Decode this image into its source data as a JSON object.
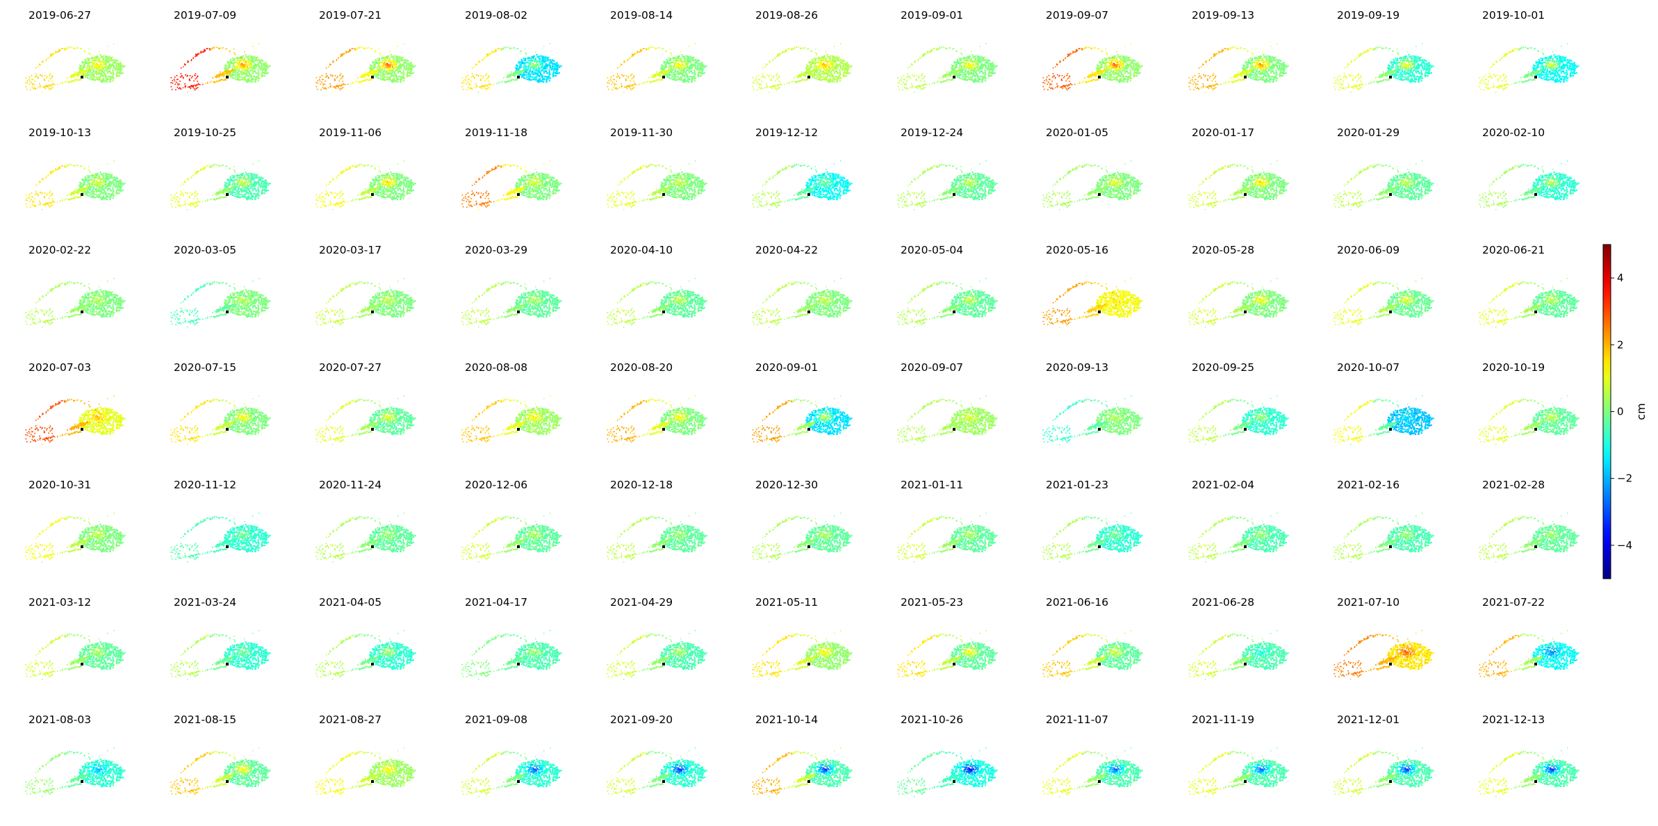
{
  "chart_data": {
    "type": "scatter",
    "layout": "small-multiples",
    "rows": 7,
    "cols": 11,
    "panels": [
      {
        "date": "2019-06-27",
        "east_anomaly": 1.5,
        "west_value": 1.6,
        "center_value": 0.3
      },
      {
        "date": "2019-07-09",
        "east_anomaly": 2.5,
        "west_value": 3.5,
        "center_value": 0.2
      },
      {
        "date": "2019-07-21",
        "east_anomaly": 3.0,
        "west_value": 2.2,
        "center_value": 0.2
      },
      {
        "date": "2019-08-02",
        "east_anomaly": 0.5,
        "west_value": 1.5,
        "center_value": -1.5
      },
      {
        "date": "2019-08-14",
        "east_anomaly": 1.5,
        "west_value": 1.8,
        "center_value": 0.0
      },
      {
        "date": "2019-08-26",
        "east_anomaly": 2.0,
        "west_value": 0.8,
        "center_value": 0.5
      },
      {
        "date": "2019-09-01",
        "east_anomaly": 1.5,
        "west_value": 0.6,
        "center_value": 0.0
      },
      {
        "date": "2019-09-07",
        "east_anomaly": 3.0,
        "west_value": 2.8,
        "center_value": 0.2
      },
      {
        "date": "2019-09-13",
        "east_anomaly": 2.5,
        "west_value": 2.0,
        "center_value": 0.0
      },
      {
        "date": "2019-09-19",
        "east_anomaly": 1.5,
        "west_value": 1.0,
        "center_value": -0.8
      },
      {
        "date": "2019-10-01",
        "east_anomaly": 1.2,
        "west_value": 1.0,
        "center_value": -1.2
      },
      {
        "date": "2019-10-13",
        "east_anomaly": 1.0,
        "west_value": 1.5,
        "center_value": 0.0
      },
      {
        "date": "2019-10-25",
        "east_anomaly": 1.0,
        "west_value": 1.0,
        "center_value": -0.5
      },
      {
        "date": "2019-11-06",
        "east_anomaly": 1.8,
        "west_value": 1.2,
        "center_value": 0.0
      },
      {
        "date": "2019-11-18",
        "east_anomaly": 1.0,
        "west_value": 2.5,
        "center_value": 0.0
      },
      {
        "date": "2019-11-30",
        "east_anomaly": 0.8,
        "west_value": 1.0,
        "center_value": 0.0
      },
      {
        "date": "2019-12-12",
        "east_anomaly": 0.0,
        "west_value": 0.5,
        "center_value": -1.2
      },
      {
        "date": "2019-12-24",
        "east_anomaly": 0.8,
        "west_value": 0.5,
        "center_value": -0.3
      },
      {
        "date": "2020-01-05",
        "east_anomaly": 1.2,
        "west_value": 0.4,
        "center_value": 0.0
      },
      {
        "date": "2020-01-17",
        "east_anomaly": 1.8,
        "west_value": 0.8,
        "center_value": 0.0
      },
      {
        "date": "2020-01-29",
        "east_anomaly": 0.8,
        "west_value": 0.6,
        "center_value": -0.3
      },
      {
        "date": "2020-02-10",
        "east_anomaly": 0.8,
        "west_value": 0.4,
        "center_value": -0.8
      },
      {
        "date": "2020-02-22",
        "east_anomaly": 0.6,
        "west_value": 0.5,
        "center_value": 0.0
      },
      {
        "date": "2020-03-05",
        "east_anomaly": 0.6,
        "west_value": -0.6,
        "center_value": 0.0
      },
      {
        "date": "2020-03-17",
        "east_anomaly": 0.8,
        "west_value": 0.7,
        "center_value": 0.0
      },
      {
        "date": "2020-03-29",
        "east_anomaly": 0.6,
        "west_value": 0.6,
        "center_value": -0.3
      },
      {
        "date": "2020-04-10",
        "east_anomaly": 0.8,
        "west_value": 0.6,
        "center_value": -0.3
      },
      {
        "date": "2020-04-22",
        "east_anomaly": 0.8,
        "west_value": 0.6,
        "center_value": 0.0
      },
      {
        "date": "2020-05-04",
        "east_anomaly": 0.8,
        "west_value": 0.5,
        "center_value": -0.3
      },
      {
        "date": "2020-05-16",
        "east_anomaly": 1.5,
        "west_value": 2.2,
        "center_value": 1.2
      },
      {
        "date": "2020-05-28",
        "east_anomaly": 1.5,
        "west_value": 0.8,
        "center_value": 0.0
      },
      {
        "date": "2020-06-09",
        "east_anomaly": 1.2,
        "west_value": 1.0,
        "center_value": -0.2
      },
      {
        "date": "2020-06-21",
        "east_anomaly": 0.8,
        "west_value": 1.0,
        "center_value": -0.3
      },
      {
        "date": "2020-07-03",
        "east_anomaly": 2.0,
        "west_value": 3.0,
        "center_value": 1.0
      },
      {
        "date": "2020-07-15",
        "east_anomaly": 1.5,
        "west_value": 1.5,
        "center_value": 0.0
      },
      {
        "date": "2020-07-27",
        "east_anomaly": 1.2,
        "west_value": 1.0,
        "center_value": -0.3
      },
      {
        "date": "2020-08-08",
        "east_anomaly": 1.5,
        "west_value": 1.8,
        "center_value": 0.3
      },
      {
        "date": "2020-08-20",
        "east_anomaly": 1.5,
        "west_value": 2.0,
        "center_value": 0.0
      },
      {
        "date": "2020-09-01",
        "east_anomaly": 1.0,
        "west_value": 2.2,
        "center_value": -1.5
      },
      {
        "date": "2020-09-07",
        "east_anomaly": 1.0,
        "west_value": 0.5,
        "center_value": 0.3
      },
      {
        "date": "2020-09-13",
        "east_anomaly": 0.6,
        "west_value": -0.8,
        "center_value": 0.0
      },
      {
        "date": "2020-09-25",
        "east_anomaly": 0.4,
        "west_value": 0.6,
        "center_value": -0.8
      },
      {
        "date": "2020-10-07",
        "east_anomaly": -1.5,
        "west_value": 1.2,
        "center_value": -1.8
      },
      {
        "date": "2020-10-19",
        "east_anomaly": 0.8,
        "west_value": 1.0,
        "center_value": -0.3
      },
      {
        "date": "2020-10-31",
        "east_anomaly": 0.8,
        "west_value": 1.2,
        "center_value": 0.0
      },
      {
        "date": "2020-11-12",
        "east_anomaly": 0.0,
        "west_value": -0.5,
        "center_value": -0.8
      },
      {
        "date": "2020-11-24",
        "east_anomaly": 0.4,
        "west_value": 0.5,
        "center_value": -0.3
      },
      {
        "date": "2020-12-06",
        "east_anomaly": 0.6,
        "west_value": 0.8,
        "center_value": -0.3
      },
      {
        "date": "2020-12-18",
        "east_anomaly": 0.4,
        "west_value": 0.6,
        "center_value": -0.3
      },
      {
        "date": "2020-12-30",
        "east_anomaly": 0.6,
        "west_value": 0.5,
        "center_value": -0.3
      },
      {
        "date": "2021-01-11",
        "east_anomaly": 0.6,
        "west_value": 0.8,
        "center_value": -0.3
      },
      {
        "date": "2021-01-23",
        "east_anomaly": 0.0,
        "west_value": 0.5,
        "center_value": -0.8
      },
      {
        "date": "2021-02-04",
        "east_anomaly": 0.4,
        "west_value": 0.6,
        "center_value": -0.5
      },
      {
        "date": "2021-02-16",
        "east_anomaly": 0.4,
        "west_value": 0.5,
        "center_value": -0.5
      },
      {
        "date": "2021-02-28",
        "east_anomaly": 0.4,
        "west_value": 0.6,
        "center_value": -0.3
      },
      {
        "date": "2021-03-12",
        "east_anomaly": 0.6,
        "west_value": 0.8,
        "center_value": -0.3
      },
      {
        "date": "2021-03-24",
        "east_anomaly": 0.0,
        "west_value": 0.5,
        "center_value": -0.8
      },
      {
        "date": "2021-04-05",
        "east_anomaly": 0.6,
        "west_value": 0.5,
        "center_value": -0.8
      },
      {
        "date": "2021-04-17",
        "east_anomaly": 0.4,
        "west_value": 0.0,
        "center_value": -0.5
      },
      {
        "date": "2021-04-29",
        "east_anomaly": 0.6,
        "west_value": 0.8,
        "center_value": -0.5
      },
      {
        "date": "2021-05-11",
        "east_anomaly": 1.5,
        "west_value": 1.5,
        "center_value": 0.2
      },
      {
        "date": "2021-05-23",
        "east_anomaly": 1.5,
        "west_value": 1.5,
        "center_value": -0.3
      },
      {
        "date": "2021-06-16",
        "east_anomaly": 1.0,
        "west_value": 1.8,
        "center_value": -0.3
      },
      {
        "date": "2021-06-28",
        "east_anomaly": -1.0,
        "west_value": 0.8,
        "center_value": -0.5
      },
      {
        "date": "2021-07-10",
        "east_anomaly": 3.0,
        "west_value": 2.5,
        "center_value": 1.5
      },
      {
        "date": "2021-07-22",
        "east_anomaly": -2.5,
        "west_value": 2.0,
        "center_value": -1.2
      },
      {
        "date": "2021-08-03",
        "east_anomaly": -2.0,
        "west_value": 0.2,
        "center_value": -0.8
      },
      {
        "date": "2021-08-15",
        "east_anomaly": 1.5,
        "west_value": 1.8,
        "center_value": -0.3
      },
      {
        "date": "2021-08-27",
        "east_anomaly": 1.5,
        "west_value": 1.2,
        "center_value": 0.3
      },
      {
        "date": "2021-09-08",
        "east_anomaly": -3.0,
        "west_value": 0.8,
        "center_value": -0.8
      },
      {
        "date": "2021-09-20",
        "east_anomaly": -3.5,
        "west_value": 0.8,
        "center_value": -0.8
      },
      {
        "date": "2021-10-14",
        "east_anomaly": -3.5,
        "west_value": 2.0,
        "center_value": -0.5
      },
      {
        "date": "2021-10-26",
        "east_anomaly": -4.0,
        "west_value": -0.3,
        "center_value": -1.0
      },
      {
        "date": "2021-11-07",
        "east_anomaly": -3.0,
        "west_value": 1.0,
        "center_value": -0.5
      },
      {
        "date": "2021-11-19",
        "east_anomaly": -3.0,
        "west_value": 1.0,
        "center_value": -0.5
      },
      {
        "date": "2021-12-01",
        "east_anomaly": -3.5,
        "west_value": 0.8,
        "center_value": -0.5
      },
      {
        "date": "2021-12-13",
        "east_anomaly": -3.5,
        "west_value": 1.0,
        "center_value": -0.5
      }
    ],
    "colorbar": {
      "label": "cm",
      "min": -5,
      "max": 5,
      "ticks": [
        -4,
        -2,
        0,
        2,
        4
      ],
      "tick_labels": [
        "−4",
        "−2",
        "0",
        "2",
        "4"
      ],
      "colormap": "jet"
    },
    "reference_point_color": "#000000",
    "legend": "none",
    "grid": false
  }
}
